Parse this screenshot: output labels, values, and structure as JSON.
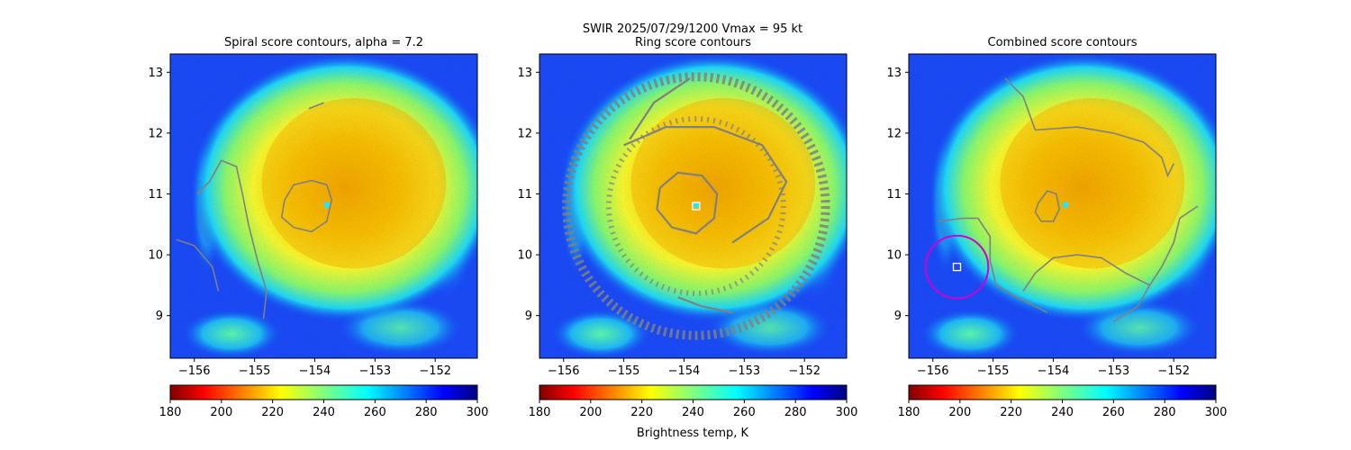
{
  "figure": {
    "suptitle_line1": "SWIR  2025/07/29/1200    Vmax = 95 kt",
    "colorbar_label": "Brightness temp, K"
  },
  "chart_data": [
    {
      "type": "heatmap",
      "title": "Spiral score contours, alpha =  7.2",
      "xlabel": "",
      "ylabel": "",
      "xlim": [
        -156.4,
        -151.3
      ],
      "ylim": [
        8.3,
        13.3
      ],
      "xticks": [
        -156,
        -155,
        -154,
        -153,
        -152
      ],
      "xtick_labels": [
        "−156",
        "−155",
        "−154",
        "−153",
        "−152"
      ],
      "yticks": [
        9,
        10,
        11,
        12,
        13
      ],
      "ytick_labels": [
        "9",
        "10",
        "11",
        "12",
        "13"
      ],
      "colorbar": {
        "min": 180,
        "max": 300,
        "ticks": [
          180,
          200,
          220,
          240,
          260,
          280,
          300
        ],
        "colormap": "jet_r"
      },
      "storm_center": [
        -153.8,
        10.82
      ],
      "contours": [
        [
          [
            -154.5,
            10.9
          ],
          [
            -154.35,
            11.15
          ],
          [
            -154.05,
            11.22
          ],
          [
            -153.8,
            11.15
          ],
          [
            -153.72,
            10.9
          ],
          [
            -153.8,
            10.55
          ],
          [
            -154.05,
            10.38
          ],
          [
            -154.35,
            10.45
          ],
          [
            -154.55,
            10.62
          ],
          [
            -154.5,
            10.9
          ]
        ],
        [
          [
            -155.95,
            11.0
          ],
          [
            -155.75,
            11.2
          ],
          [
            -155.55,
            11.55
          ],
          [
            -155.3,
            11.45
          ],
          [
            -155.2,
            11.0
          ],
          [
            -155.1,
            10.5
          ],
          [
            -154.95,
            9.9
          ],
          [
            -154.8,
            9.4
          ],
          [
            -154.85,
            8.95
          ]
        ],
        [
          [
            -156.3,
            10.25
          ],
          [
            -156.0,
            10.15
          ],
          [
            -155.7,
            9.8
          ],
          [
            -155.6,
            9.4
          ]
        ],
        [
          [
            -154.1,
            12.4
          ],
          [
            -153.85,
            12.5
          ]
        ]
      ],
      "markers": [],
      "circle": null
    },
    {
      "type": "heatmap",
      "title": "Ring score contours",
      "xlabel": "",
      "ylabel": "",
      "xlim": [
        -156.4,
        -151.3
      ],
      "ylim": [
        8.3,
        13.3
      ],
      "xticks": [
        -156,
        -155,
        -154,
        -153,
        -152
      ],
      "xtick_labels": [
        "−156",
        "−155",
        "−154",
        "−153",
        "−152"
      ],
      "yticks": [
        9,
        10,
        11,
        12,
        13
      ],
      "ytick_labels": [
        "9",
        "10",
        "11",
        "12",
        "13"
      ],
      "colorbar": {
        "min": 180,
        "max": 300,
        "ticks": [
          180,
          200,
          220,
          240,
          260,
          280,
          300
        ],
        "colormap": "jet_r"
      },
      "storm_center": [
        -153.8,
        10.82
      ],
      "contours": [
        [
          [
            -154.4,
            11.1
          ],
          [
            -154.1,
            11.35
          ],
          [
            -153.7,
            11.3
          ],
          [
            -153.45,
            11.0
          ],
          [
            -153.5,
            10.6
          ],
          [
            -153.8,
            10.35
          ],
          [
            -154.2,
            10.45
          ],
          [
            -154.45,
            10.75
          ],
          [
            -154.4,
            11.1
          ]
        ],
        [
          [
            -155.0,
            11.8
          ],
          [
            -154.3,
            12.1
          ],
          [
            -153.5,
            12.1
          ],
          [
            -152.7,
            11.8
          ],
          [
            -152.3,
            11.2
          ],
          [
            -152.6,
            10.6
          ],
          [
            -153.2,
            10.2
          ]
        ],
        [
          [
            -154.9,
            11.9
          ],
          [
            -154.5,
            12.5
          ],
          [
            -153.9,
            12.9
          ]
        ],
        [
          [
            -154.1,
            9.3
          ],
          [
            -153.7,
            9.15
          ],
          [
            -153.2,
            9.05
          ]
        ]
      ],
      "markers": [
        {
          "name": "center-marker",
          "x": -153.8,
          "y": 10.8
        }
      ],
      "circle": null
    },
    {
      "type": "heatmap",
      "title": "Combined score contours",
      "xlabel": "",
      "ylabel": "",
      "xlim": [
        -156.4,
        -151.3
      ],
      "ylim": [
        8.3,
        13.3
      ],
      "xticks": [
        -156,
        -155,
        -154,
        -153,
        -152
      ],
      "xtick_labels": [
        "−156",
        "−155",
        "−154",
        "−153",
        "−152"
      ],
      "yticks": [
        9,
        10,
        11,
        12,
        13
      ],
      "ytick_labels": [
        "9",
        "10",
        "11",
        "12",
        "13"
      ],
      "colorbar": {
        "min": 180,
        "max": 300,
        "ticks": [
          180,
          200,
          220,
          240,
          260,
          280,
          300
        ],
        "colormap": "jet_r"
      },
      "storm_center": [
        -153.8,
        10.82
      ],
      "contours": [
        [
          [
            -154.25,
            10.85
          ],
          [
            -154.1,
            11.05
          ],
          [
            -153.95,
            11.0
          ],
          [
            -153.9,
            10.75
          ],
          [
            -154.0,
            10.55
          ],
          [
            -154.2,
            10.55
          ],
          [
            -154.3,
            10.7
          ],
          [
            -154.25,
            10.85
          ]
        ],
        [
          [
            -154.3,
            12.05
          ],
          [
            -153.6,
            12.1
          ],
          [
            -153.0,
            12.0
          ],
          [
            -152.5,
            11.85
          ],
          [
            -152.2,
            11.6
          ],
          [
            -152.1,
            11.3
          ],
          [
            -152.0,
            11.5
          ]
        ],
        [
          [
            -154.3,
            12.05
          ],
          [
            -154.5,
            12.6
          ],
          [
            -154.8,
            12.9
          ]
        ],
        [
          [
            -155.9,
            10.55
          ],
          [
            -155.5,
            10.6
          ],
          [
            -155.25,
            10.6
          ],
          [
            -155.05,
            10.3
          ],
          [
            -155.05,
            9.9
          ],
          [
            -154.95,
            9.5
          ],
          [
            -154.6,
            9.3
          ],
          [
            -154.1,
            9.05
          ]
        ],
        [
          [
            -153.0,
            8.9
          ],
          [
            -152.6,
            9.15
          ],
          [
            -152.4,
            9.5
          ],
          [
            -152.2,
            9.8
          ],
          [
            -152.0,
            10.2
          ],
          [
            -151.9,
            10.6
          ],
          [
            -151.6,
            10.8
          ]
        ],
        [
          [
            -152.4,
            9.5
          ],
          [
            -152.8,
            9.7
          ],
          [
            -153.2,
            9.95
          ],
          [
            -153.6,
            10.0
          ],
          [
            -154.0,
            9.95
          ],
          [
            -154.3,
            9.7
          ],
          [
            -154.5,
            9.4
          ]
        ]
      ],
      "markers": [
        {
          "name": "center-marker",
          "x": -155.6,
          "y": 9.8
        }
      ],
      "circle": {
        "cx": -155.6,
        "cy": 9.8,
        "r_deg": 0.52
      }
    }
  ]
}
